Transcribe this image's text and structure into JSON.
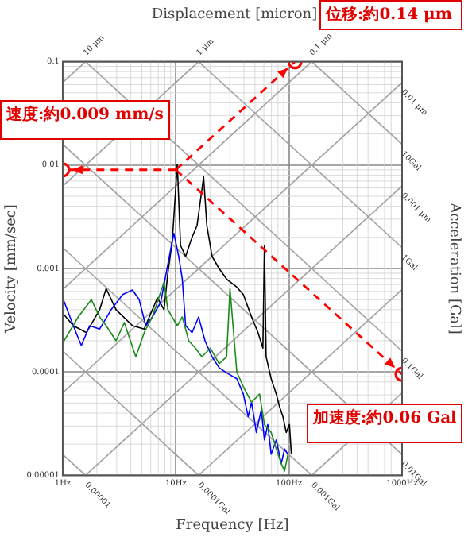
{
  "chart_data": {
    "type": "line",
    "title": "Displacement [micron]",
    "xlabel": "Frequency [Hz]",
    "ylabel": "Velocity [mm/sec]",
    "y2label": "Acceleration [Gal]",
    "xlim": [
      1,
      1000
    ],
    "ylim": [
      1e-05,
      0.1
    ],
    "xticks": [
      {
        "value": 1,
        "label": "1Hz"
      },
      {
        "value": 10,
        "label": "10Hz"
      },
      {
        "value": 100,
        "label": "100Hz"
      },
      {
        "value": 1000,
        "label": "1000Hz"
      }
    ],
    "yticks": [
      {
        "value": 1e-05,
        "label": "0.00001"
      },
      0.0001,
      0.001,
      0.01,
      0.1
    ],
    "log": "xy",
    "grid": true,
    "legend": false,
    "series": [
      {
        "color": "#a0a0a0",
        "x": [
          1,
          1.59
        ],
        "values": [
          0.0628,
          0.1
        ]
      },
      {
        "color": "#a0a0a0",
        "x": [
          1,
          15.9
        ],
        "values": [
          0.00628,
          0.1
        ]
      },
      {
        "color": "#a0a0a0",
        "x": [
          1,
          159
        ],
        "values": [
          0.000628,
          0.1
        ]
      },
      {
        "color": "#a0a0a0",
        "x": [
          1,
          1000
        ],
        "values": [
          6.28e-05,
          0.0628
        ]
      },
      {
        "color": "#a0a0a0",
        "x": [
          1.59,
          1000
        ],
        "values": [
          1e-05,
          0.00628
        ]
      },
      {
        "color": "#a0a0a0",
        "x": [
          15.9,
          1000
        ],
        "values": [
          1e-05,
          0.000628
        ]
      },
      {
        "color": "#a0a0a0",
        "x": [
          159,
          1000
        ],
        "values": [
          1e-05,
          6.28e-05
        ]
      },
      {
        "color": "#a0a0a0",
        "x": [
          159,
          1000
        ],
        "values": [
          0.1,
          0.0159
        ]
      },
      {
        "color": "#a0a0a0",
        "x": [
          15.9,
          1000
        ],
        "values": [
          0.1,
          0.00159
        ]
      },
      {
        "color": "#a0a0a0",
        "x": [
          1.59,
          1000
        ],
        "values": [
          0.1,
          0.000159
        ]
      },
      {
        "color": "#a0a0a0",
        "x": [
          1,
          1000
        ],
        "values": [
          0.0159,
          1.59e-05
        ]
      },
      {
        "color": "#a0a0a0",
        "x": [
          1,
          159
        ],
        "values": [
          0.00159,
          1e-05
        ]
      },
      {
        "color": "#a0a0a0",
        "x": [
          1,
          15.9
        ],
        "values": [
          0.000159,
          1e-05
        ]
      },
      {
        "color": "#a0a0a0",
        "x": [
          1,
          1.59
        ],
        "values": [
          1.59e-05,
          1e-05
        ]
      },
      {
        "color": "#000000",
        "x": [
          1,
          1.24,
          1.62,
          2.12,
          2.42,
          2.96,
          4.14,
          5.25,
          6.87,
          7.86,
          8.5,
          9.3,
          10.3,
          11,
          12.2,
          13.9,
          15.4,
          16.4,
          17.6,
          18.8,
          20.9,
          24.1,
          28.1,
          34.6,
          39.5,
          46.7,
          53.3,
          58.8,
          60.7,
          62.8,
          69.6,
          77.3,
          82.6,
          88.4,
          94.6,
          101,
          105
        ],
        "values": [
          0.00037,
          0.00028,
          0.00024,
          0.0004,
          0.00064,
          0.0004,
          0.00028,
          0.00026,
          0.00052,
          0.0004,
          0.0009,
          0.00185,
          0.0102,
          0.00167,
          0.00131,
          0.002,
          0.0026,
          0.00434,
          0.0077,
          0.0026,
          0.00131,
          0.001,
          0.00079,
          0.00066,
          0.00056,
          0.00034,
          0.00024,
          0.00017,
          0.00167,
          0.00014,
          8.6e-05,
          6.1e-05,
          4.6e-05,
          3.7e-05,
          2.6e-05,
          3.1e-05,
          1.6e-05
        ]
      },
      {
        "color": "#0000ff",
        "x": [
          1,
          1.24,
          1.46,
          1.73,
          2.12,
          2.68,
          3.39,
          4.14,
          4.74,
          5.42,
          6.2,
          7.35,
          8.5,
          9.6,
          10.6,
          11.4,
          12.2,
          13.9,
          15.9,
          18.1,
          20.9,
          24.1,
          28.1,
          34.6,
          39.5,
          43.6,
          46.7,
          51.5,
          56.9,
          60.7,
          65,
          69.6,
          77.3,
          85.5,
          91.5,
          97.9
        ],
        "values": [
          0.00052,
          0.00028,
          0.00018,
          0.00028,
          0.00026,
          0.0004,
          0.00056,
          0.00062,
          0.0005,
          0.00028,
          0.00034,
          0.00047,
          0.0011,
          0.00219,
          0.00131,
          0.00079,
          0.00028,
          0.00024,
          0.00034,
          0.0002,
          0.00014,
          0.00011,
          9.8e-05,
          8.6e-05,
          6.1e-05,
          3.7e-05,
          5.1e-05,
          2.6e-05,
          4.3e-05,
          2.2e-05,
          3.1e-05,
          1.6e-05,
          2.2e-05,
          1.3e-05,
          1.8e-05,
          1.6e-05
        ]
      },
      {
        "color": "#1a8a1a",
        "x": [
          1,
          1.37,
          1.79,
          2.12,
          2.42,
          2.96,
          3.5,
          4.43,
          5.25,
          6.2,
          7.86,
          8.5,
          10.3,
          11.4,
          13,
          14.9,
          17,
          20.2,
          24.1,
          28.1,
          30.1,
          34.6,
          39.5,
          46.7,
          55,
          60.7,
          69.6,
          77.3,
          85.5,
          91.5,
          97.9
        ],
        "values": [
          0.00019,
          0.00034,
          0.0005,
          0.00034,
          0.00028,
          0.0002,
          0.0003,
          0.00014,
          0.00024,
          0.00034,
          0.00074,
          0.0004,
          0.00028,
          0.00034,
          0.0002,
          0.00017,
          0.00014,
          0.00017,
          0.00012,
          0.00014,
          0.00064,
          0.0001,
          7.2e-05,
          5.1e-05,
          6.1e-05,
          3.1e-05,
          2.6e-05,
          1.8e-05,
          1.3e-05,
          1.1e-05,
          1.6e-05
        ]
      },
      {
        "color": "#ff0000",
        "line_style": "dashed",
        "marker": "circle",
        "x": [
          10,
          1
        ],
        "values": [
          0.009,
          0.009
        ]
      },
      {
        "color": "#ff0000",
        "line_style": "dashed",
        "marker": "circle",
        "x": [
          10,
          113
        ],
        "values": [
          0.009,
          0.1
        ]
      },
      {
        "color": "#ff0000",
        "line_style": "dashed",
        "marker": "circle",
        "x": [
          10,
          1000
        ],
        "values": [
          0.009,
          9.5e-05
        ]
      }
    ],
    "annotations": [
      "速度:約0.009 mm/s",
      "位移:約0.14 μm",
      "加速度:約0.06 Gal",
      {
        "text": "10 μm",
        "x": 1.59,
        "y": 0.1
      },
      {
        "text": "1 μm",
        "x": 15.9,
        "y": 0.1
      },
      {
        "text": "0.1 μm",
        "x": 159,
        "y": 0.1
      },
      {
        "text": "0.01 μm",
        "x": 1000,
        "y": 0.0628
      },
      {
        "text": "10Gal",
        "x": 1000,
        "y": 0.0159
      },
      {
        "text": "0.001 μm",
        "x": 1000,
        "y": 0.00628
      },
      {
        "text": "1Gal",
        "x": 1000,
        "y": 0.00159
      },
      {
        "text": "0.1Gal",
        "x": 1000,
        "y": 0.000159
      },
      {
        "text": "0.01Gal",
        "x": 1000,
        "y": 1.59e-05
      },
      {
        "text": "0.00001",
        "x": 1.59,
        "y": 1e-05
      },
      {
        "text": "0.0001Gal",
        "x": 15.9,
        "y": 1e-05
      },
      {
        "text": "0.001Gal",
        "x": 159,
        "y": 1e-05
      }
    ]
  }
}
